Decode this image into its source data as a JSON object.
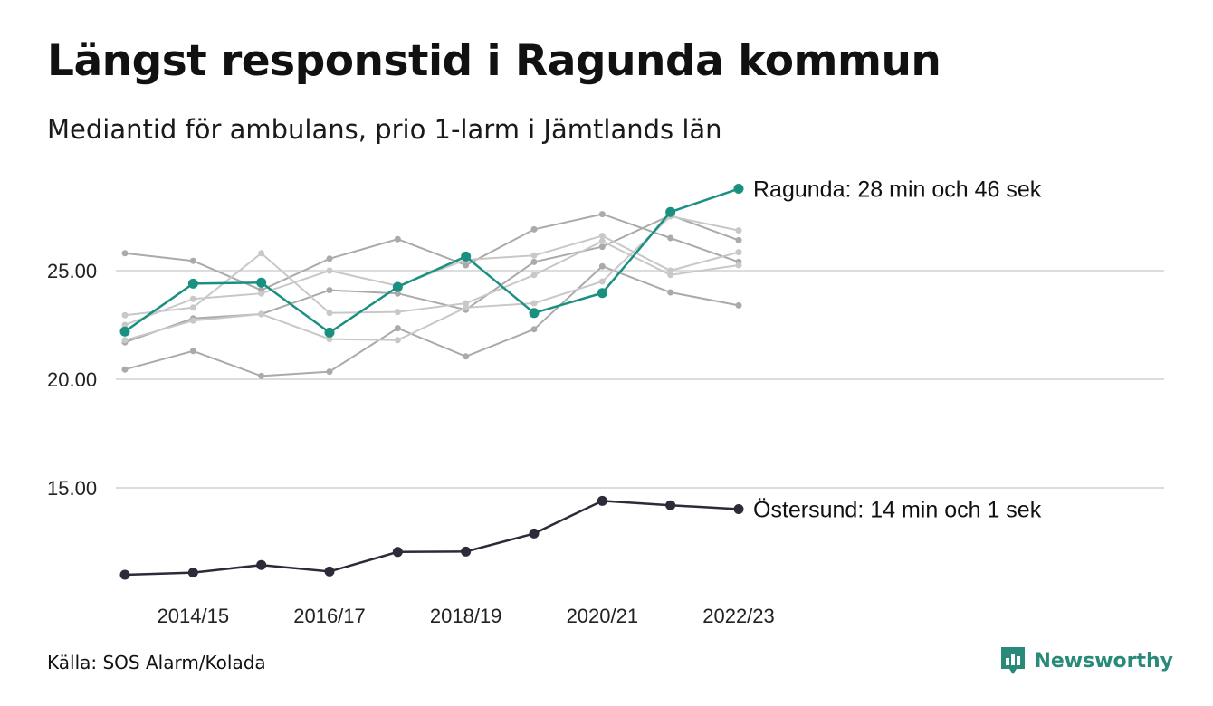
{
  "title": "Längst responstid i Ragunda kommun",
  "subtitle": "Mediantid för ambulans, prio 1-larm i Jämtlands län",
  "source": "Källa: SOS Alarm/Kolada",
  "brand": "Newsworthy",
  "colors": {
    "highlight": "#1a9080",
    "dark": "#2b2b3a",
    "gray": "#aaaaaa",
    "light_gray": "#c8c8c8",
    "grid": "#dddddd",
    "brand": "#2a8a7a"
  },
  "chart_data": {
    "type": "line",
    "x": [
      "2013/14",
      "2014/15",
      "2015/16",
      "2016/17",
      "2017/18",
      "2018/19",
      "2019/20",
      "2020/21",
      "2021/22",
      "2022/23"
    ],
    "x_tick_labels": [
      "2014/15",
      "2016/17",
      "2018/19",
      "2020/21",
      "2022/23"
    ],
    "y_ticks": [
      15.0,
      20.0,
      25.0
    ],
    "y_tick_labels": [
      "15.00",
      "20.00",
      "25.00"
    ],
    "ylim": [
      10.8,
      30.5
    ],
    "grid": "horizontal",
    "series": [
      {
        "name": "Ragunda",
        "role": "highlight",
        "values": [
          22.2,
          24.4,
          24.45,
          22.15,
          24.25,
          25.65,
          23.05,
          23.97,
          27.7,
          28.77
        ]
      },
      {
        "name": "Östersund",
        "role": "dark",
        "values": [
          11.0,
          11.1,
          11.45,
          11.15,
          12.05,
          12.07,
          12.9,
          14.4,
          14.2,
          14.02
        ]
      },
      {
        "role": "context",
        "values": [
          25.8,
          25.45,
          24.1,
          25.55,
          26.45,
          25.25,
          26.9,
          27.6,
          26.5,
          25.4
        ]
      },
      {
        "role": "context",
        "values": [
          21.7,
          22.8,
          23.0,
          24.1,
          23.95,
          23.2,
          25.4,
          26.1,
          27.55,
          26.4
        ]
      },
      {
        "role": "context",
        "values": [
          20.45,
          21.3,
          20.15,
          20.35,
          22.35,
          21.05,
          22.3,
          25.2,
          24.0,
          23.4
        ]
      },
      {
        "role": "context",
        "values": [
          22.95,
          23.3,
          25.8,
          23.05,
          23.1,
          23.5,
          24.8,
          26.35,
          24.8,
          25.25
        ]
      },
      {
        "role": "context",
        "values": [
          22.5,
          23.7,
          23.95,
          25.0,
          24.3,
          25.5,
          25.7,
          26.6,
          25.0,
          25.85
        ]
      },
      {
        "role": "context",
        "values": [
          21.8,
          22.7,
          23.0,
          21.85,
          21.8,
          23.3,
          23.5,
          24.5,
          27.5,
          26.85
        ]
      }
    ],
    "annotations": [
      {
        "series": "Ragunda",
        "text": "Ragunda: 28 min och 46 sek"
      },
      {
        "series": "Östersund",
        "text": "Östersund: 14 min och 1 sek"
      }
    ]
  }
}
